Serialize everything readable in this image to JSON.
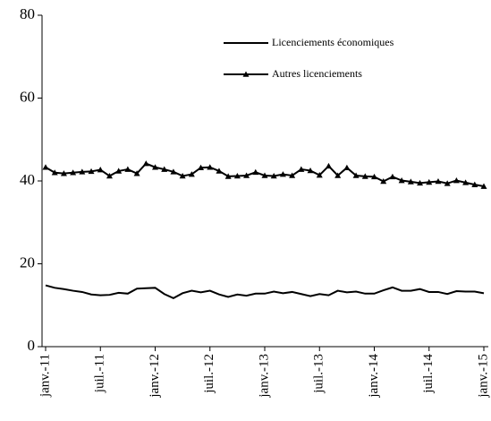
{
  "chart_data": {
    "type": "line",
    "categories": [
      "janv.-11",
      null,
      null,
      null,
      null,
      null,
      "juil.-11",
      null,
      null,
      null,
      null,
      null,
      "janv.-12",
      null,
      null,
      null,
      null,
      null,
      "juil.-12",
      null,
      null,
      null,
      null,
      null,
      "janv.-13",
      null,
      null,
      null,
      null,
      null,
      "juil.-13",
      null,
      null,
      null,
      null,
      null,
      "janv.-14",
      null,
      null,
      null,
      null,
      null,
      "juil.-14",
      null,
      null,
      null,
      null,
      null,
      "janv.-15"
    ],
    "series": [
      {
        "name": "Licenciements économiques",
        "color": "#000000",
        "marker": "none",
        "values": [
          14.8,
          14.2,
          13.9,
          13.5,
          13.2,
          12.6,
          12.4,
          12.5,
          13,
          12.8,
          14,
          14.1,
          14.2,
          12.7,
          11.7,
          12.9,
          13.5,
          13.1,
          13.5,
          12.6,
          12,
          12.6,
          12.3,
          12.8,
          12.8,
          13.3,
          12.9,
          13.2,
          12.7,
          12.2,
          12.7,
          12.4,
          13.5,
          13.1,
          13.3,
          12.8,
          12.8,
          13.6,
          14.3,
          13.5,
          13.5,
          13.9,
          13.2,
          13.2,
          12.7,
          13.4,
          13.3,
          13.3,
          12.9
        ]
      },
      {
        "name": "Autres licenciements",
        "color": "#000000",
        "marker": "triangle",
        "values": [
          43.3,
          42,
          41.8,
          42,
          42.2,
          42.3,
          42.7,
          41.2,
          42.4,
          42.8,
          41.8,
          44.2,
          43.3,
          42.8,
          42.2,
          41.2,
          41.6,
          43.2,
          43.3,
          42.4,
          41.1,
          41.2,
          41.3,
          42.1,
          41.3,
          41.2,
          41.6,
          41.3,
          42.8,
          42.5,
          41.4,
          43.6,
          41.3,
          43.2,
          41.3,
          41.1,
          41,
          39.9,
          41,
          40.1,
          39.8,
          39.5,
          39.7,
          39.9,
          39.4,
          40.1,
          39.6,
          39.1,
          38.7
        ]
      }
    ],
    "ylim": [
      0,
      80
    ],
    "yticks": [
      0,
      20,
      40,
      60,
      80
    ],
    "grid": false
  }
}
